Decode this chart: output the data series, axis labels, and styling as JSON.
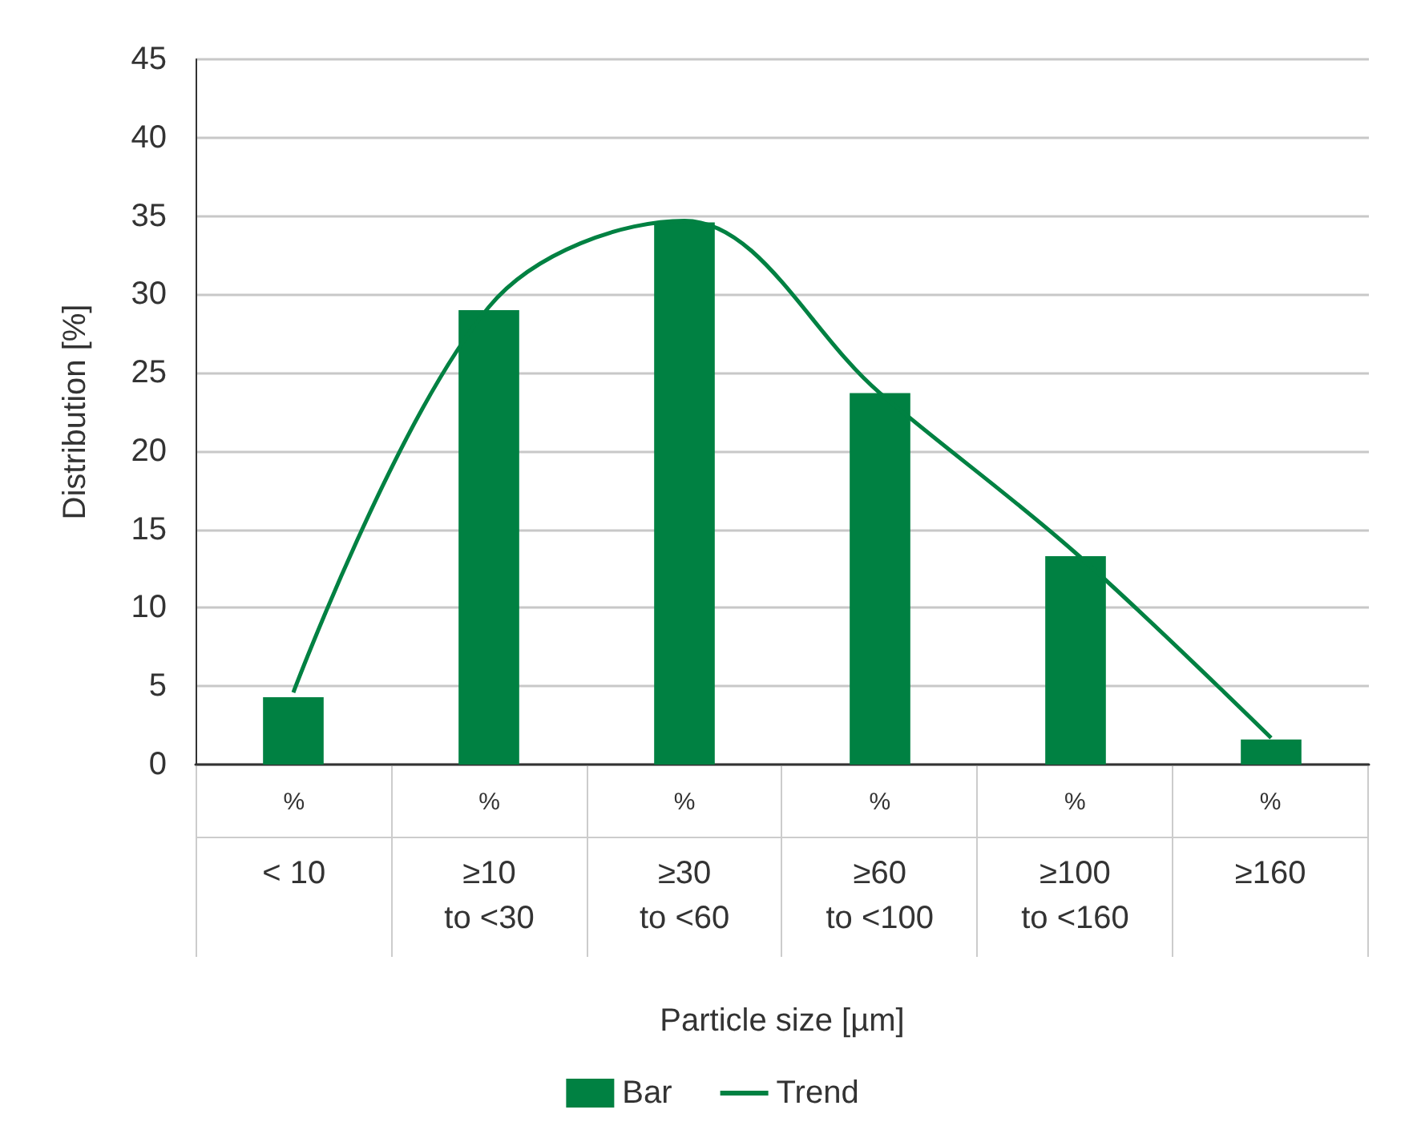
{
  "chart_data": {
    "type": "bar",
    "xlabel": "Particle size [µm]",
    "ylabel": "Distribution [%]",
    "categories": [
      "< 10",
      "≥10\nto <30",
      "≥30\nto <60",
      "≥60\nto <100",
      "≥100\nto <160",
      "≥160"
    ],
    "series": [
      {
        "name": "Bar",
        "color": "#008142",
        "values": [
          4.3,
          29.0,
          34.6,
          23.7,
          13.3,
          1.6
        ],
        "value_labels": [
          "%",
          "%",
          "%",
          "%",
          "%",
          "%"
        ]
      },
      {
        "name": "Trend",
        "type": "line",
        "color": "#008142",
        "values": [
          4.6,
          29.2,
          34.7,
          23.7,
          13.5,
          1.7
        ],
        "marker": "none",
        "line_style": "solid"
      }
    ],
    "ylim": [
      0,
      45
    ],
    "yticks": [
      0,
      5,
      10,
      15,
      20,
      25,
      30,
      35,
      40,
      45
    ],
    "grid": "y",
    "legend": "bottom"
  }
}
